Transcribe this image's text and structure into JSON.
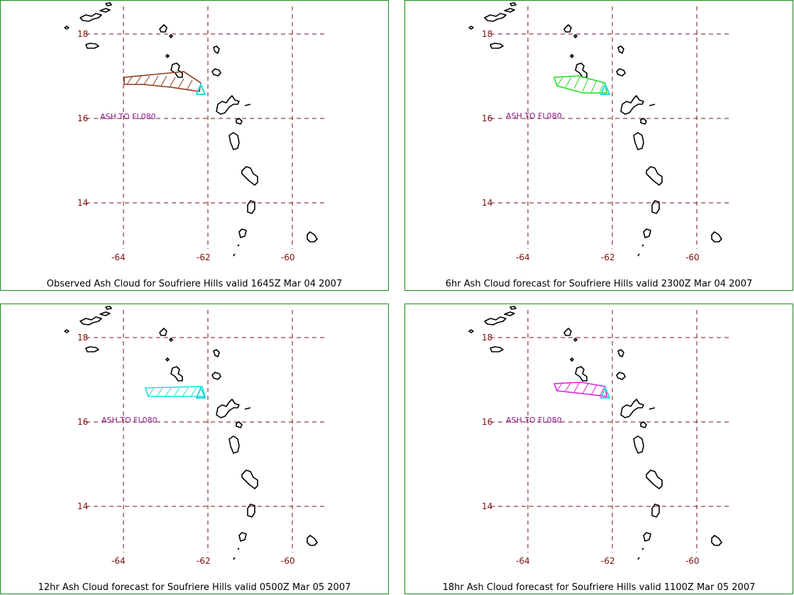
{
  "panels": [
    {
      "caption": "Observed Ash Cloud for Soufriere  Hills valid 1645Z Mar 04 2007",
      "cloud_color": "#8b3a1a"
    },
    {
      "caption": "6hr Ash Cloud forecast for Soufriere  Hills valid 2300Z Mar 04 2007",
      "cloud_color": "#22dd22"
    },
    {
      "caption": "12hr Ash Cloud forecast for Soufriere  Hills valid 0500Z Mar 05 2007",
      "cloud_color": "#22dddd"
    },
    {
      "caption": "18hr Ash Cloud forecast for Soufriere  Hills valid 1100Z Mar 05 2007",
      "cloud_color": "#dd22dd"
    }
  ],
  "map": {
    "ash_label": "ASH TO FL080",
    "lat_labels": [
      "18",
      "16",
      "14"
    ],
    "lon_labels": [
      "-64",
      "-62",
      "-60"
    ],
    "grid_color": "#7a1010",
    "volcano_marker_color": "#22dddd"
  }
}
